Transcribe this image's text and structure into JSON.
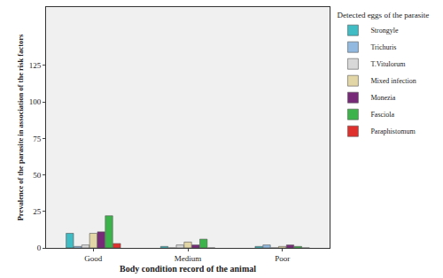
{
  "chart_data": {
    "type": "bar",
    "x_label": "Body condition record of the animal",
    "y_label": "Prevalence of the parasite in association of the risk factors",
    "legend_title": "Detected eggs of the parasite",
    "categories": [
      "Good",
      "Medium",
      "Poor"
    ],
    "series": [
      {
        "name": "Strongyle",
        "color": "#3fbcc4",
        "values": [
          10,
          1,
          1
        ]
      },
      {
        "name": "Trichuris",
        "color": "#92b9e0",
        "values": [
          1,
          0,
          2
        ]
      },
      {
        "name": "T.Vitulorum",
        "color": "#d8d8d8",
        "values": [
          2,
          2,
          0
        ]
      },
      {
        "name": "Mixed infection",
        "color": "#e3d6a6",
        "values": [
          10,
          4,
          1
        ]
      },
      {
        "name": "Monezia",
        "color": "#772a77",
        "values": [
          11,
          2,
          2
        ]
      },
      {
        "name": "Fasciola",
        "color": "#3db44b",
        "values": [
          22,
          6,
          1
        ]
      },
      {
        "name": "Paraphistomum",
        "color": "#e0302e",
        "values": [
          3,
          0,
          0
        ]
      }
    ],
    "ylim": [
      0,
      165
    ],
    "yticks": [
      0,
      25,
      50,
      75,
      100,
      125
    ],
    "grid": false,
    "legend": "right"
  }
}
